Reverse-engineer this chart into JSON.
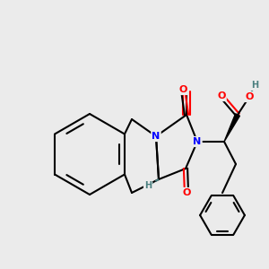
{
  "bg_color": "#ebebeb",
  "bond_color": "#000000",
  "bond_width": 1.5,
  "atom_colors": {
    "N": "#0000ff",
    "O": "#ff0000",
    "H": "#4a7f7f",
    "C": "#000000"
  },
  "font_size_atom": 9,
  "figsize": [
    3.0,
    3.0
  ],
  "dpi": 100
}
